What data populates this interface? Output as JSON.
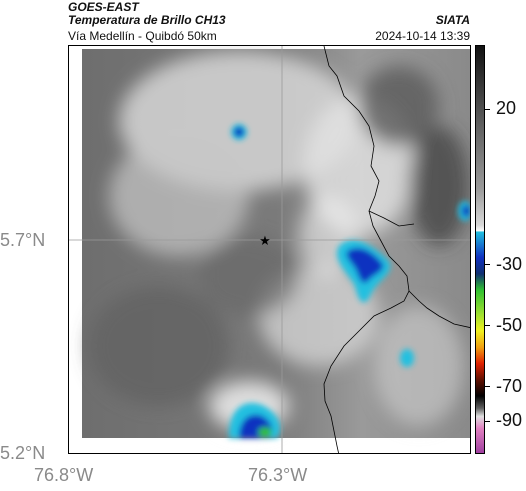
{
  "header": {
    "satellite": "GOES-EAST",
    "product": "Temperatura de Brillo CH13",
    "route": "Vía Medellín - Quibdó 50km",
    "source": "SIATA",
    "datetime": "2024-10-14 13:39"
  },
  "map": {
    "lat_labels": [
      "5.7°N",
      "5.2°N"
    ],
    "lon_labels": [
      "76.8°W",
      "76.3°W"
    ],
    "marker": "star"
  },
  "colorbar": {
    "labels": [
      "20",
      "-30",
      "-50",
      "-70",
      "-90"
    ],
    "colors": {
      "warm_top": "#111111",
      "gray_mid": "#9a9a9a",
      "cyan": "#20c0e0",
      "blue": "#1030c0",
      "green": "#30c030",
      "yellow": "#f0f020",
      "red": "#e02000",
      "black": "#000000",
      "pink": "#e080c0",
      "purple": "#a040a0"
    }
  }
}
